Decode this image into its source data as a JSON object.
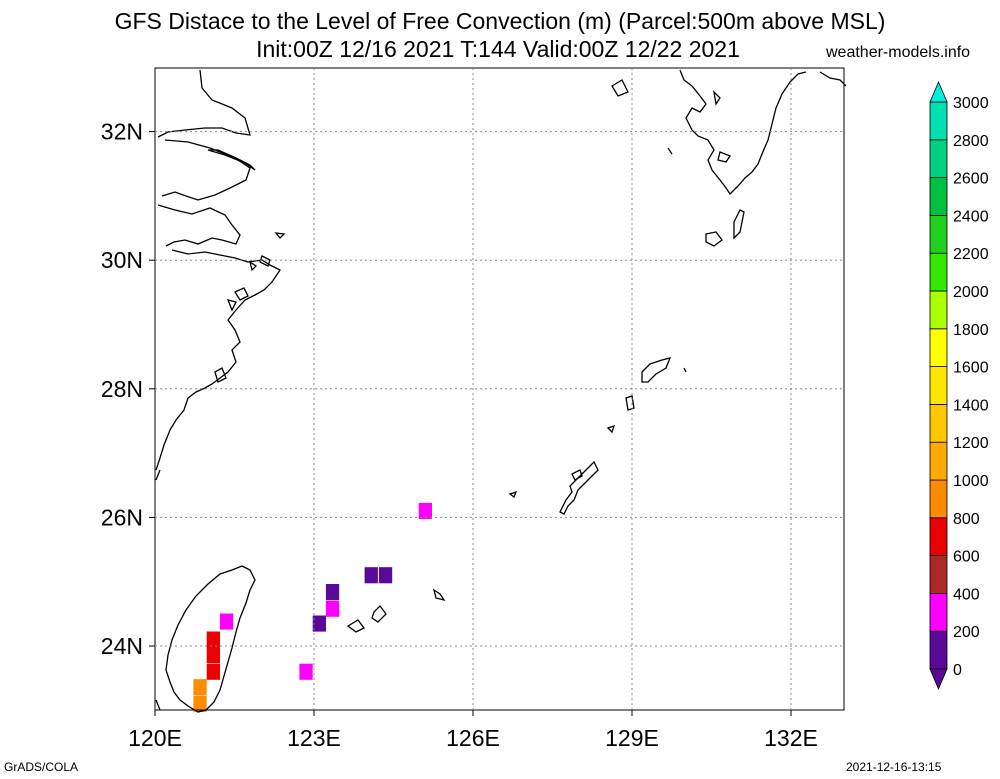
{
  "header": {
    "title_line1": "GFS Distace to the Level of Free Convection (m) (Parcel:500m above MSL)",
    "title_line2": "Init:00Z 12/16 2021 T:144 Valid:00Z 12/22 2021",
    "brand": "weather-models.info"
  },
  "footer": {
    "left": "GrADS/COLA",
    "right": "2021-12-16-13:15"
  },
  "map": {
    "lon_range": [
      120,
      133
    ],
    "lat_range": [
      23,
      33
    ],
    "lon_labels": [
      {
        "lon": 120,
        "label": "120E"
      },
      {
        "lon": 123,
        "label": "123E"
      },
      {
        "lon": 126,
        "label": "126E"
      },
      {
        "lon": 129,
        "label": "129E"
      },
      {
        "lon": 132,
        "label": "132E"
      }
    ],
    "lat_labels": [
      {
        "lat": 24,
        "label": "24N"
      },
      {
        "lat": 26,
        "label": "26N"
      },
      {
        "lat": 28,
        "label": "28N"
      },
      {
        "lat": 30,
        "label": "30N"
      },
      {
        "lat": 32,
        "label": "32N"
      }
    ],
    "cells": [
      {
        "lon": 124.08,
        "lat": 25.1,
        "c": "#5a0896"
      },
      {
        "lon": 124.35,
        "lat": 25.1,
        "c": "#5a0896"
      },
      {
        "lon": 123.35,
        "lat": 24.84,
        "c": "#5a0896"
      },
      {
        "lon": 123.35,
        "lat": 24.58,
        "c": "#ff00ff"
      },
      {
        "lon": 123.1,
        "lat": 24.35,
        "c": "#5a0896"
      },
      {
        "lon": 125.1,
        "lat": 26.1,
        "c": "#ff00ff"
      },
      {
        "lon": 121.35,
        "lat": 24.38,
        "c": "#ff00ff"
      },
      {
        "lon": 121.1,
        "lat": 24.1,
        "c": "#ea0000"
      },
      {
        "lon": 121.1,
        "lat": 23.86,
        "c": "#ea0000"
      },
      {
        "lon": 121.1,
        "lat": 23.6,
        "c": "#ea0000"
      },
      {
        "lon": 120.85,
        "lat": 23.36,
        "c": "#ff8c00"
      },
      {
        "lon": 120.85,
        "lat": 23.1,
        "c": "#ff8c00"
      },
      {
        "lon": 122.85,
        "lat": 23.6,
        "c": "#ff00ff"
      }
    ]
  },
  "colorbar": {
    "levels": [
      "0",
      "200",
      "400",
      "600",
      "800",
      "1000",
      "1200",
      "1400",
      "1600",
      "1800",
      "2000",
      "2200",
      "2400",
      "2600",
      "2800",
      "3000"
    ],
    "colors": [
      "#5a0896",
      "#ff00ff",
      "#aa2a2a",
      "#ea0000",
      "#ff8c00",
      "#ffaa00",
      "#ffc800",
      "#ffe600",
      "#ffff00",
      "#aaff00",
      "#34e800",
      "#20d020",
      "#00c040",
      "#00d080",
      "#00e0b0",
      "#00f0f0"
    ],
    "under_color": "#5a0896",
    "over_color": "#00f0e0"
  }
}
